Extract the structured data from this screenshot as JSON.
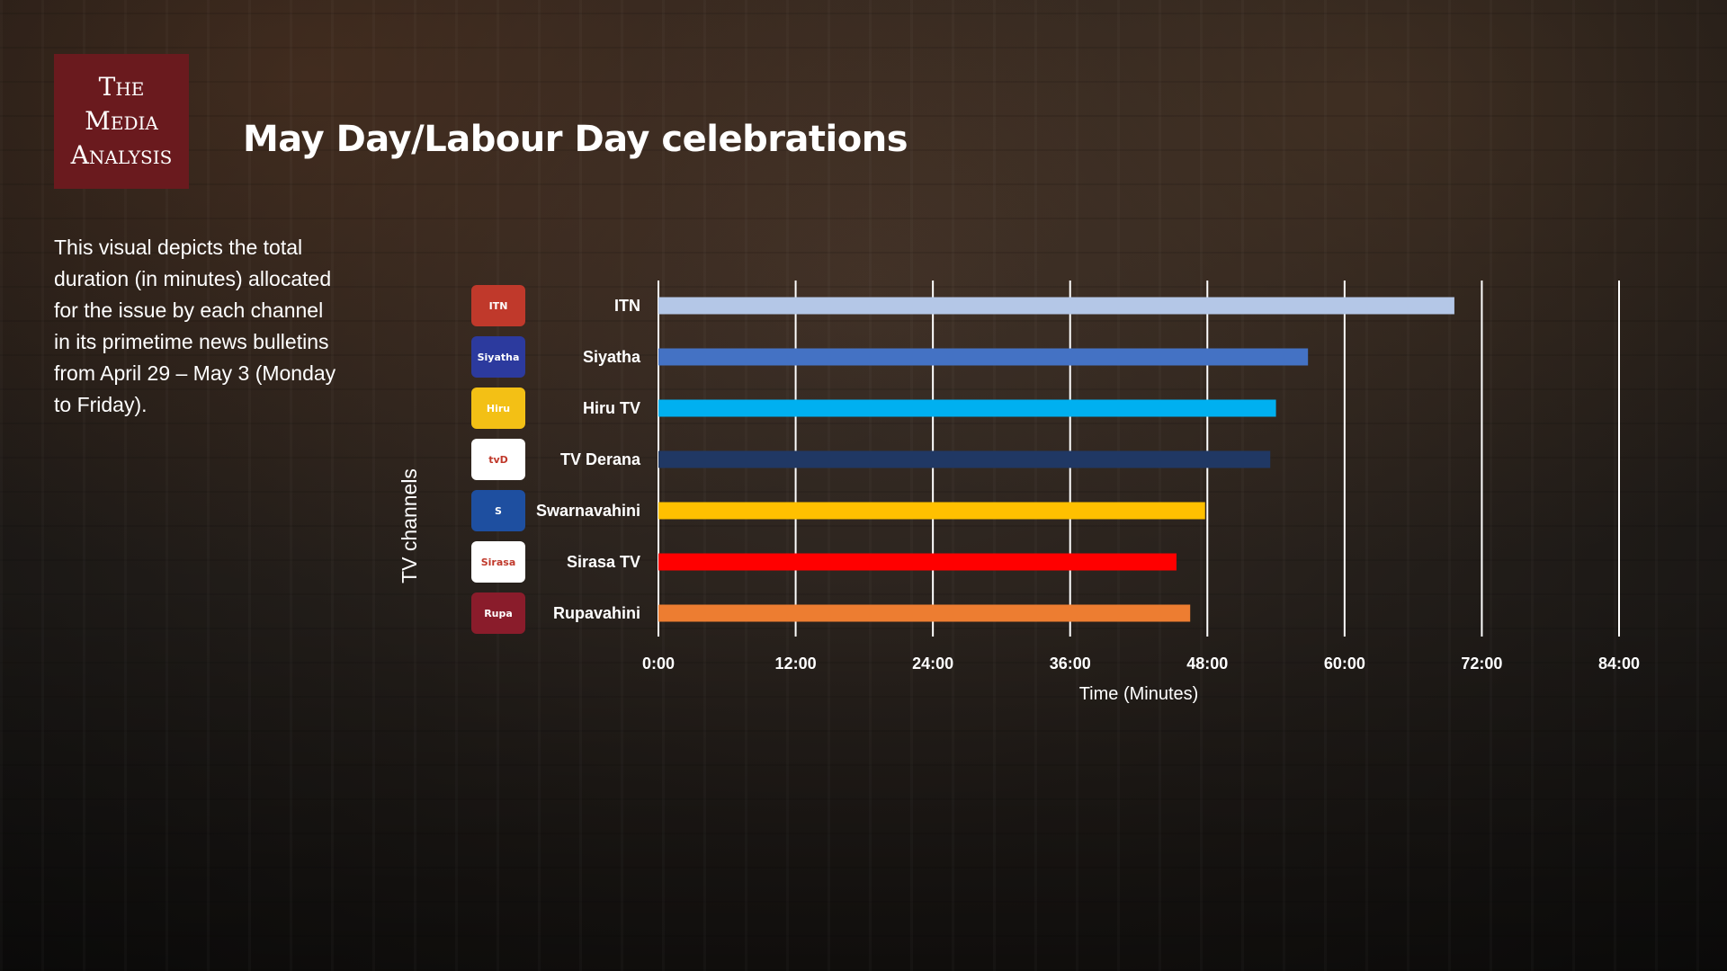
{
  "logo": {
    "line1": "The",
    "line2": "Media",
    "line3": "Analysis"
  },
  "title": "May Day/Labour Day celebrations",
  "description": "This visual depicts the total duration (in minutes) allocated for the issue by each channel in its primetime news bulletins from April 29 – May 3 (Monday to Friday).",
  "channel_logos": [
    {
      "icon": "itn-logo-icon",
      "color": "#c0392b",
      "text": "ITN"
    },
    {
      "icon": "siyatha-logo-icon",
      "color": "#2c3a9e",
      "text": "Siyatha"
    },
    {
      "icon": "hiru-logo-icon",
      "color": "#f3c015",
      "text": "Hiru"
    },
    {
      "icon": "derana-logo-icon",
      "color": "#ffffff",
      "text": "tvD"
    },
    {
      "icon": "swarnavahini-logo-icon",
      "color": "#1e4fa0",
      "text": "S"
    },
    {
      "icon": "sirasa-logo-icon",
      "color": "#ffffff",
      "text": "Sirasa"
    },
    {
      "icon": "rupavahini-logo-icon",
      "color": "#8a1c2b",
      "text": "Rupa"
    }
  ],
  "chart_data": {
    "type": "bar",
    "orientation": "horizontal",
    "xlabel": "Time (Minutes)",
    "ylabel": "TV channels",
    "xlim": [
      0,
      84
    ],
    "x_ticks": [
      0,
      12,
      24,
      36,
      48,
      60,
      72,
      84
    ],
    "x_tick_labels": [
      "0:00",
      "12:00",
      "24:00",
      "36:00",
      "48:00",
      "60:00",
      "72:00",
      "84:00"
    ],
    "grid": true,
    "categories": [
      "ITN",
      "Siyatha",
      "Hiru TV",
      "TV Derana",
      "Swarnavahini",
      "Sirasa TV",
      "Rupavahini"
    ],
    "values": [
      69.6,
      56.8,
      54.0,
      53.5,
      47.8,
      45.3,
      46.5
    ],
    "colors": [
      "#b4c7e7",
      "#4472c4",
      "#00b0f0",
      "#203864",
      "#ffc000",
      "#ff0000",
      "#ed7d31"
    ]
  }
}
